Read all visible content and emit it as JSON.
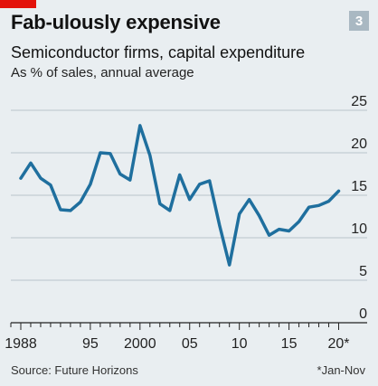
{
  "badge": "3",
  "footer": {
    "source": "Source: Future Horizons",
    "note": "*Jan-Nov"
  },
  "colors": {
    "line": "#1f6f9e",
    "grid": "#b9c4cb",
    "accent": "#e3120b"
  },
  "chart_data": {
    "type": "line",
    "title": "Fab-ulously expensive",
    "subtitle": "Semiconductor firms, capital expenditure",
    "ylabel": "As % of sales, annual average",
    "xlabel": "",
    "ylim": [
      0,
      25
    ],
    "xlim": [
      1987,
      2020.5
    ],
    "y_ticks": [
      "0",
      "5",
      "10",
      "15",
      "20",
      "25"
    ],
    "x_ticks": [
      {
        "x": 1988,
        "label": "1988"
      },
      {
        "x": 1995,
        "label": "95"
      },
      {
        "x": 2000,
        "label": "2000"
      },
      {
        "x": 2005,
        "label": "05"
      },
      {
        "x": 2010,
        "label": "10"
      },
      {
        "x": 2015,
        "label": "15"
      },
      {
        "x": 2020,
        "label": "20*"
      }
    ],
    "grid": true,
    "legend": "none",
    "x": [
      1988,
      1989,
      1990,
      1991,
      1992,
      1993,
      1994,
      1995,
      1996,
      1997,
      1998,
      1999,
      2000,
      2001,
      2002,
      2003,
      2004,
      2005,
      2006,
      2007,
      2008,
      2009,
      2010,
      2011,
      2012,
      2013,
      2014,
      2015,
      2016,
      2017,
      2018,
      2019,
      2020
    ],
    "values": [
      17.0,
      18.8,
      17.0,
      16.2,
      13.3,
      13.2,
      14.2,
      16.3,
      20.0,
      19.9,
      17.5,
      16.8,
      23.2,
      19.7,
      14.0,
      13.2,
      17.4,
      14.5,
      16.3,
      16.7,
      11.5,
      6.8,
      12.8,
      14.5,
      12.6,
      10.3,
      11.0,
      10.8,
      11.9,
      13.6,
      13.8,
      14.3,
      15.5
    ]
  }
}
